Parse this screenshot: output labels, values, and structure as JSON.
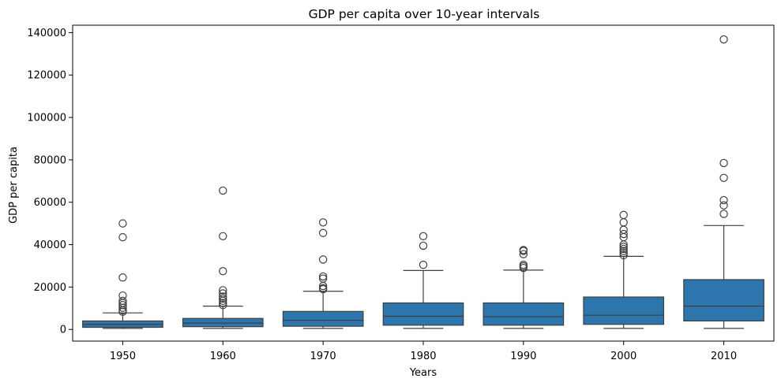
{
  "chart_data": {
    "type": "box",
    "title": "GDP per capita over 10-year intervals",
    "xlabel": "Years",
    "ylabel": "GDP per capita",
    "ylim": [
      -5500,
      143500
    ],
    "yticks": [
      0,
      20000,
      40000,
      60000,
      80000,
      100000,
      120000,
      140000
    ],
    "ytick_labels": [
      "0",
      "20000",
      "40000",
      "60000",
      "80000",
      "100000",
      "120000",
      "140000"
    ],
    "grid": false,
    "color": "#2d75ad",
    "categories": [
      "1950",
      "1960",
      "1970",
      "1980",
      "1990",
      "2000",
      "2010"
    ],
    "boxes": [
      {
        "whisker_low": 500,
        "q1": 1000,
        "median": 2400,
        "q3": 4000,
        "whisker_high": 7800,
        "outliers": [
          8300,
          9000,
          10200,
          11500,
          12500,
          13500,
          16000,
          24500,
          43500,
          50000
        ]
      },
      {
        "whisker_low": 500,
        "q1": 1300,
        "median": 3000,
        "q3": 5200,
        "whisker_high": 11000,
        "outliers": [
          11500,
          12500,
          13500,
          14500,
          15500,
          17000,
          18500,
          27500,
          44000,
          65500
        ]
      },
      {
        "whisker_low": 500,
        "q1": 1500,
        "median": 4300,
        "q3": 8500,
        "whisker_high": 18000,
        "outliers": [
          19000,
          19500,
          20500,
          24000,
          25000,
          33000,
          45500,
          50500
        ]
      },
      {
        "whisker_low": 500,
        "q1": 2000,
        "median": 6200,
        "q3": 12500,
        "whisker_high": 27800,
        "outliers": [
          30500,
          39500,
          44000
        ]
      },
      {
        "whisker_low": 500,
        "q1": 2000,
        "median": 6000,
        "q3": 12500,
        "whisker_high": 28000,
        "outliers": [
          29000,
          29800,
          30500,
          35500,
          37000,
          37500
        ]
      },
      {
        "whisker_low": 500,
        "q1": 2400,
        "median": 6700,
        "q3": 15300,
        "whisker_high": 34500,
        "outliers": [
          35000,
          36000,
          37000,
          38000,
          39000,
          40000,
          43500,
          45000,
          47000,
          50500,
          54000
        ]
      },
      {
        "whisker_low": 500,
        "q1": 4000,
        "median": 11000,
        "q3": 23500,
        "whisker_high": 49000,
        "outliers": [
          54500,
          58500,
          61000,
          71500,
          78500,
          136800
        ]
      }
    ]
  }
}
